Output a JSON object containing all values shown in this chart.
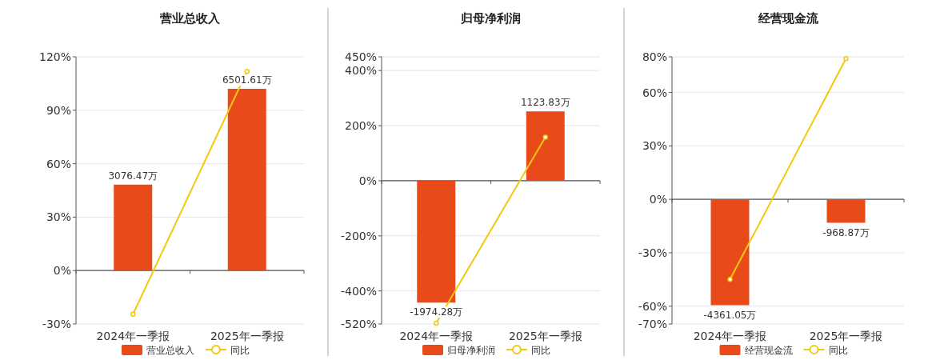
{
  "chart_data": [
    {
      "type": "bar",
      "title": "营业总收入",
      "categories": [
        "2024年一季报",
        "2025年一季报"
      ],
      "ylim": [
        -30,
        120
      ],
      "yticks": [
        {
          "value": -30,
          "label": "-30%"
        },
        {
          "value": 0,
          "label": "0%"
        },
        {
          "value": 30,
          "label": "30%"
        },
        {
          "value": 60,
          "label": "60%"
        },
        {
          "value": 90,
          "label": "90%"
        },
        {
          "value": 120,
          "label": "120%"
        }
      ],
      "grid": "y",
      "legend": "bottom",
      "series": [
        {
          "name": "营业总收入",
          "type": "bar",
          "axis": "y2",
          "color": "#e84a1a",
          "values": [
            3076.47,
            6501.61
          ],
          "value_labels": [
            "3076.47万",
            "6501.61万"
          ]
        },
        {
          "name": "同比",
          "type": "line",
          "axis": "y",
          "color": "#f2c811",
          "marker": "circle",
          "values": [
            -24.5,
            111.8
          ]
        }
      ]
    },
    {
      "type": "bar",
      "title": "归母净利润",
      "categories": [
        "2024年一季报",
        "2025年一季报"
      ],
      "ylim": [
        -520,
        450
      ],
      "yticks": [
        {
          "value": -520,
          "label": "-520%"
        },
        {
          "value": -400,
          "label": "-400%"
        },
        {
          "value": -200,
          "label": "-200%"
        },
        {
          "value": 0,
          "label": "0%"
        },
        {
          "value": 200,
          "label": "200%"
        },
        {
          "value": 400,
          "label": "400%"
        },
        {
          "value": 450,
          "label": "450%"
        }
      ],
      "grid": "y",
      "legend": "bottom",
      "series": [
        {
          "name": "归母净利润",
          "type": "bar",
          "axis": "y2",
          "color": "#e84a1a",
          "values": [
            -1974.28,
            1123.83
          ],
          "value_labels": [
            "-1974.28万",
            "1123.83万"
          ]
        },
        {
          "name": "同比",
          "type": "line",
          "axis": "y",
          "color": "#f2c811",
          "marker": "circle",
          "values": [
            -517,
            158
          ]
        }
      ]
    },
    {
      "type": "bar",
      "title": "经营现金流",
      "categories": [
        "2024年一季报",
        "2025年一季报"
      ],
      "ylim": [
        -70,
        80
      ],
      "yticks": [
        {
          "value": -70,
          "label": "-70%"
        },
        {
          "value": -60,
          "label": "-60%"
        },
        {
          "value": -30,
          "label": "-30%"
        },
        {
          "value": 0,
          "label": "0%"
        },
        {
          "value": 30,
          "label": "30%"
        },
        {
          "value": 60,
          "label": "60%"
        },
        {
          "value": 80,
          "label": "80%"
        }
      ],
      "grid": "y",
      "legend": "bottom",
      "series": [
        {
          "name": "经营现金流",
          "type": "bar",
          "axis": "y2",
          "color": "#e84a1a",
          "values": [
            -4361.05,
            -968.87
          ],
          "value_labels": [
            "-4361.05万",
            "-968.87万"
          ]
        },
        {
          "name": "同比",
          "type": "line",
          "axis": "y",
          "color": "#f2c811",
          "marker": "circle",
          "values": [
            -45,
            79
          ]
        }
      ]
    }
  ]
}
